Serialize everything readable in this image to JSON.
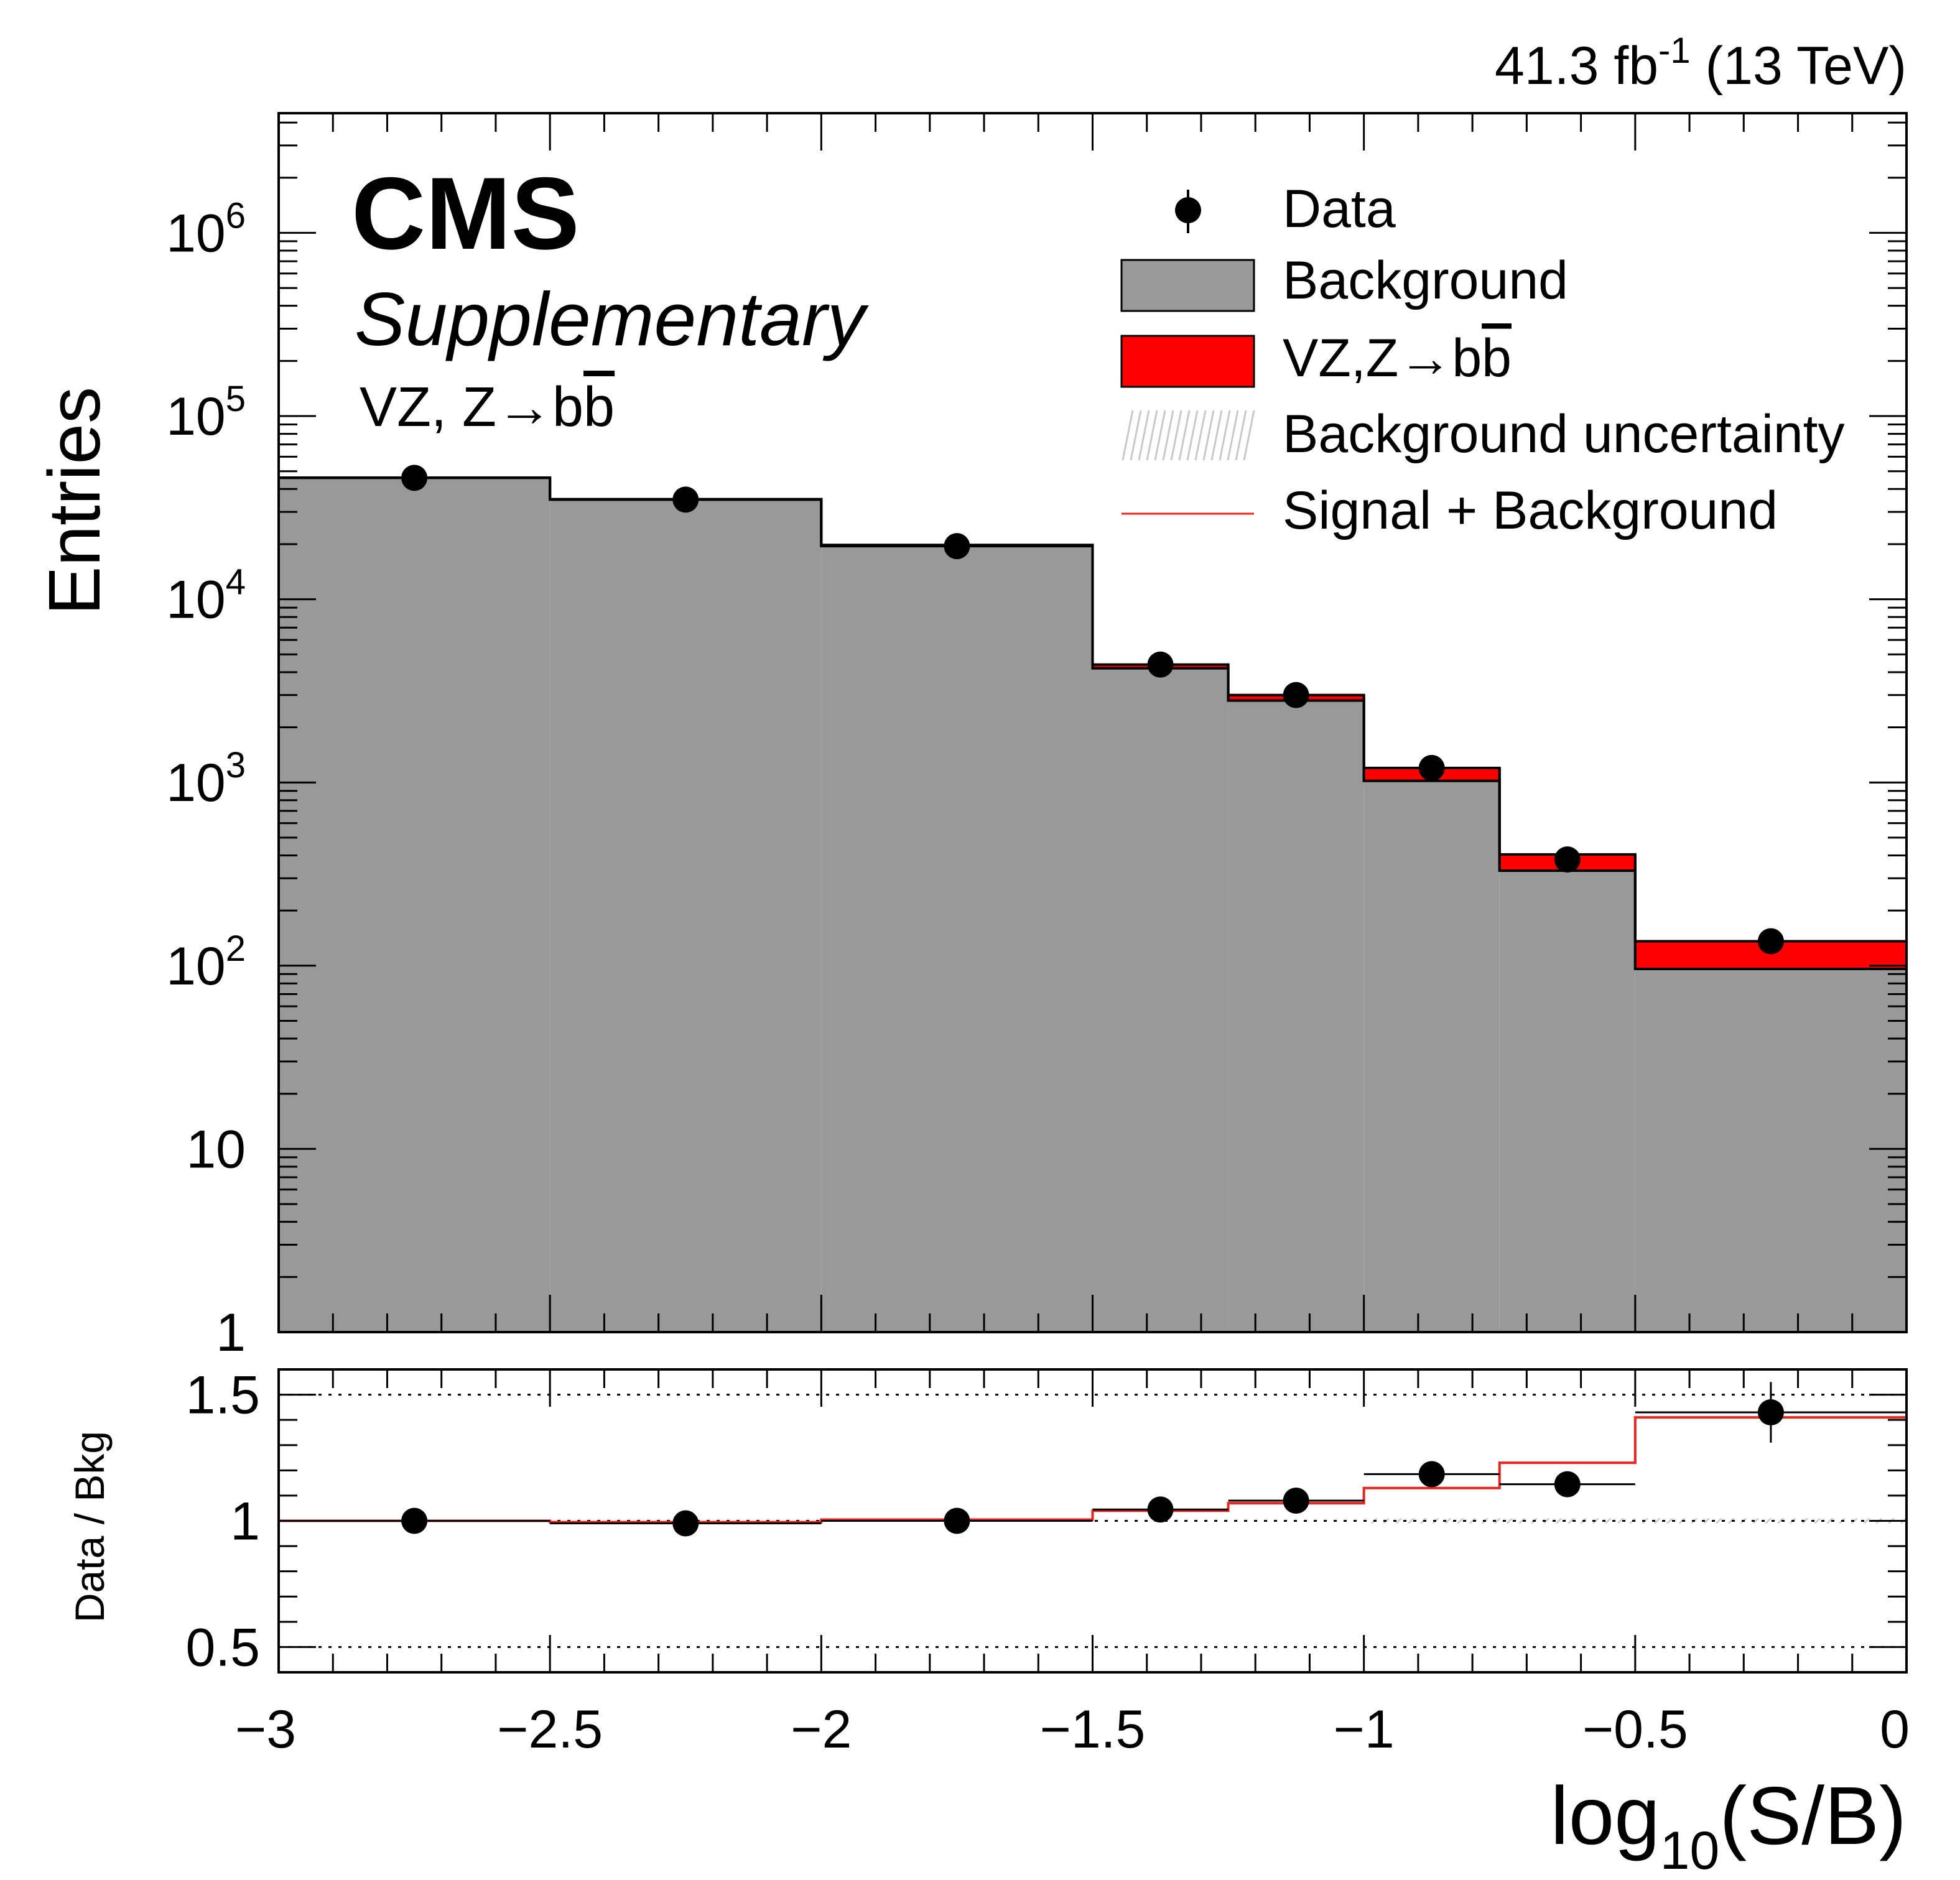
{
  "header": {
    "lumi_value": "41.3 fb",
    "lumi_exp": "-1",
    "energy": "(13 TeV)",
    "cms": "CMS",
    "supplementary": "Supplementary",
    "process": "VZ, Z→b",
    "process_bbar": "b"
  },
  "legend": {
    "data": "Data",
    "background": "Background",
    "signal": "VZ,Z→b",
    "signal_bbar": "b",
    "uncertainty": "Background uncertainty",
    "sig_plus_bkg": "Signal + Background"
  },
  "colors": {
    "background": "#999999",
    "signal": "#ff0000",
    "sig_plus_bkg_line": "#e8261e",
    "data": "#000000",
    "uncertainty": "#c8c8c8"
  },
  "chart_data": [
    {
      "type": "bar",
      "stacked": true,
      "log_y": true,
      "xlabel": "log",
      "xlabel_sub": "10",
      "xlabel_tail": "(S/B)",
      "ylabel": "Entries",
      "xlim": [
        -3,
        0
      ],
      "ylim": [
        1,
        4500000
      ],
      "bin_edges": [
        -3,
        -2.5,
        -2,
        -1.5,
        -1.25,
        -1,
        -0.75,
        -0.5,
        0
      ],
      "series": [
        {
          "name": "Background",
          "values": [
            46000,
            35000,
            19500,
            4200,
            2800,
            1020,
            330,
            96
          ]
        },
        {
          "name": "VZ,Z→bb",
          "values": [
            150,
            200,
            300,
            200,
            200,
            180,
            75,
            40
          ]
        }
      ],
      "data_points": {
        "x": [
          -2.75,
          -2.25,
          -1.75,
          -1.375,
          -1.125,
          -0.875,
          -0.625,
          -0.25
        ],
        "y": [
          46000,
          35000,
          19500,
          4400,
          3000,
          1200,
          380,
          136
        ]
      },
      "y_tick_labels": [
        {
          "value": 1000000,
          "base": "10",
          "exp": "6"
        },
        {
          "value": 100000,
          "base": "10",
          "exp": "5"
        },
        {
          "value": 10000,
          "base": "10",
          "exp": "4"
        },
        {
          "value": 1000,
          "base": "10",
          "exp": "3"
        },
        {
          "value": 100,
          "base": "10",
          "exp": "2"
        },
        {
          "value": 10,
          "base": "10",
          "exp": ""
        },
        {
          "value": 1,
          "base": "1",
          "exp": ""
        }
      ],
      "legend_position": "top-right"
    },
    {
      "type": "line",
      "ylabel": "Data / Bkg",
      "ylim": [
        0.4,
        1.6
      ],
      "x_ticks": [
        -3,
        -2.5,
        -2,
        -1.5,
        -1,
        -0.5,
        0
      ],
      "x_tick_labels": [
        "−3",
        "−2.5",
        "−2",
        "−1.5",
        "−1",
        "−0.5",
        "0"
      ],
      "y_ticks": [
        0.5,
        1,
        1.5
      ],
      "y_tick_labels": [
        "0.5",
        "1",
        "1.5"
      ],
      "reference_lines": [
        0.5,
        1,
        1.5
      ],
      "bin_edges": [
        -3,
        -2.5,
        -2,
        -1.5,
        -1.25,
        -1,
        -0.75,
        -0.5,
        0
      ],
      "sig_plus_bkg_ratio": [
        1.0,
        0.995,
        1.005,
        1.04,
        1.07,
        1.13,
        1.23,
        1.41
      ],
      "data_ratio": {
        "x": [
          -2.75,
          -2.25,
          -1.75,
          -1.375,
          -1.125,
          -0.875,
          -0.625,
          -0.25
        ],
        "y": [
          1.0,
          0.99,
          1.0,
          1.045,
          1.08,
          1.185,
          1.145,
          1.43
        ],
        "yerr": [
          0.005,
          0.006,
          0.008,
          0.015,
          0.02,
          0.03,
          0.05,
          0.12
        ]
      },
      "uncertainty_band": 0.01
    }
  ]
}
